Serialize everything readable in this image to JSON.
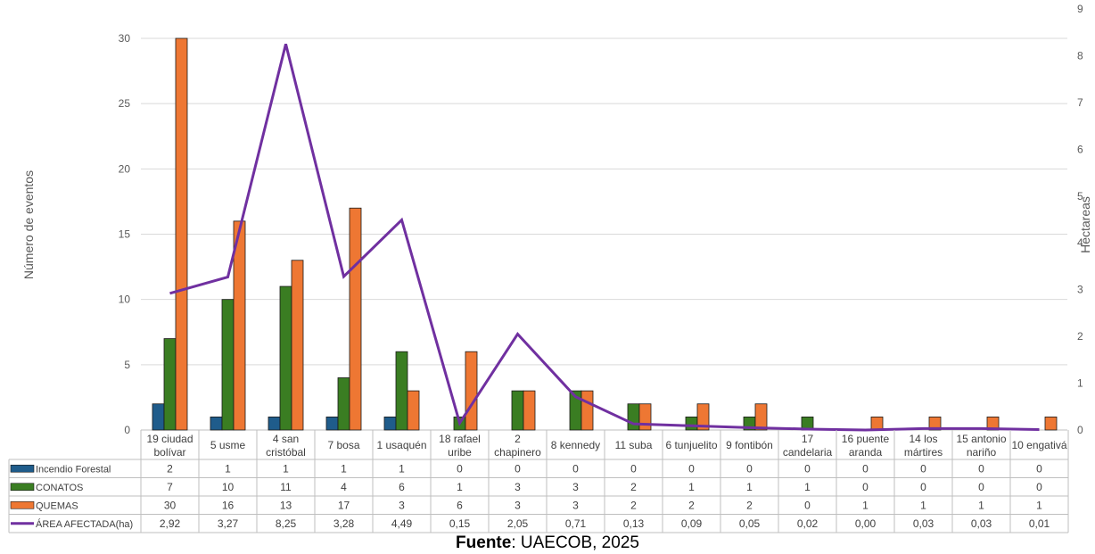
{
  "chart_data": {
    "type": "bar",
    "ylabel": "Número de eventos",
    "y2label": "Hectareas",
    "ylim": [
      0,
      30
    ],
    "y_ticks": [
      0,
      5,
      10,
      15,
      20,
      25,
      30
    ],
    "y2lim": [
      0,
      9
    ],
    "y2_ticks": [
      0,
      1,
      2,
      3,
      4,
      5,
      6,
      7,
      8,
      9
    ],
    "grid": true,
    "legend": "table-left",
    "categories": [
      [
        "19 ciudad",
        "bolívar"
      ],
      [
        "5 usme"
      ],
      [
        "4 san",
        "cristóbal"
      ],
      [
        "7 bosa"
      ],
      [
        "1 usaquén"
      ],
      [
        "18 rafael",
        "uribe"
      ],
      [
        "2",
        "chapinero"
      ],
      [
        "8 kennedy"
      ],
      [
        "11 suba"
      ],
      [
        "6 tunjuelito"
      ],
      [
        "9 fontibón"
      ],
      [
        "17",
        "candelaria"
      ],
      [
        "16 puente",
        "aranda"
      ],
      [
        "14 los",
        "mártires"
      ],
      [
        "15 antonio",
        "nariño"
      ],
      [
        "10 engativá"
      ]
    ],
    "series": [
      {
        "name": "Incendio Forestal",
        "kind": "bar",
        "color": "#1f5c8b",
        "values": [
          2,
          1,
          1,
          1,
          1,
          0,
          0,
          0,
          0,
          0,
          0,
          0,
          0,
          0,
          0,
          0
        ],
        "labels": [
          "2",
          "1",
          "1",
          "1",
          "1",
          "0",
          "0",
          "0",
          "0",
          "0",
          "0",
          "0",
          "0",
          "0",
          "0",
          "0"
        ]
      },
      {
        "name": "CONATOS",
        "kind": "bar",
        "color": "#3a7d22",
        "values": [
          7,
          10,
          11,
          4,
          6,
          1,
          3,
          3,
          2,
          1,
          1,
          1,
          0,
          0,
          0,
          0
        ],
        "labels": [
          "7",
          "10",
          "11",
          "4",
          "6",
          "1",
          "3",
          "3",
          "2",
          "1",
          "1",
          "1",
          "0",
          "0",
          "0",
          "0"
        ]
      },
      {
        "name": "QUEMAS",
        "kind": "bar",
        "color": "#ee7733",
        "values": [
          30,
          16,
          13,
          17,
          3,
          6,
          3,
          3,
          2,
          2,
          2,
          0,
          1,
          1,
          1,
          1
        ],
        "labels": [
          "30",
          "16",
          "13",
          "17",
          "3",
          "6",
          "3",
          "3",
          "2",
          "2",
          "2",
          "0",
          "1",
          "1",
          "1",
          "1"
        ]
      },
      {
        "name": "ÁREA AFECTADA(ha)",
        "kind": "line",
        "axis": "secondary",
        "color": "#7030a0",
        "values": [
          2.92,
          3.27,
          8.25,
          3.28,
          4.49,
          0.15,
          2.05,
          0.71,
          0.13,
          0.09,
          0.05,
          0.02,
          0.0,
          0.03,
          0.03,
          0.01
        ],
        "labels": [
          "2,92",
          "3,27",
          "8,25",
          "3,28",
          "4,49",
          "0,15",
          "2,05",
          "0,71",
          "0,13",
          "0,09",
          "0,05",
          "0,02",
          "0,00",
          "0,03",
          "0,03",
          "0,01"
        ]
      }
    ]
  },
  "source": {
    "label": "Fuente",
    "text": ": UAECOB, 2025"
  }
}
